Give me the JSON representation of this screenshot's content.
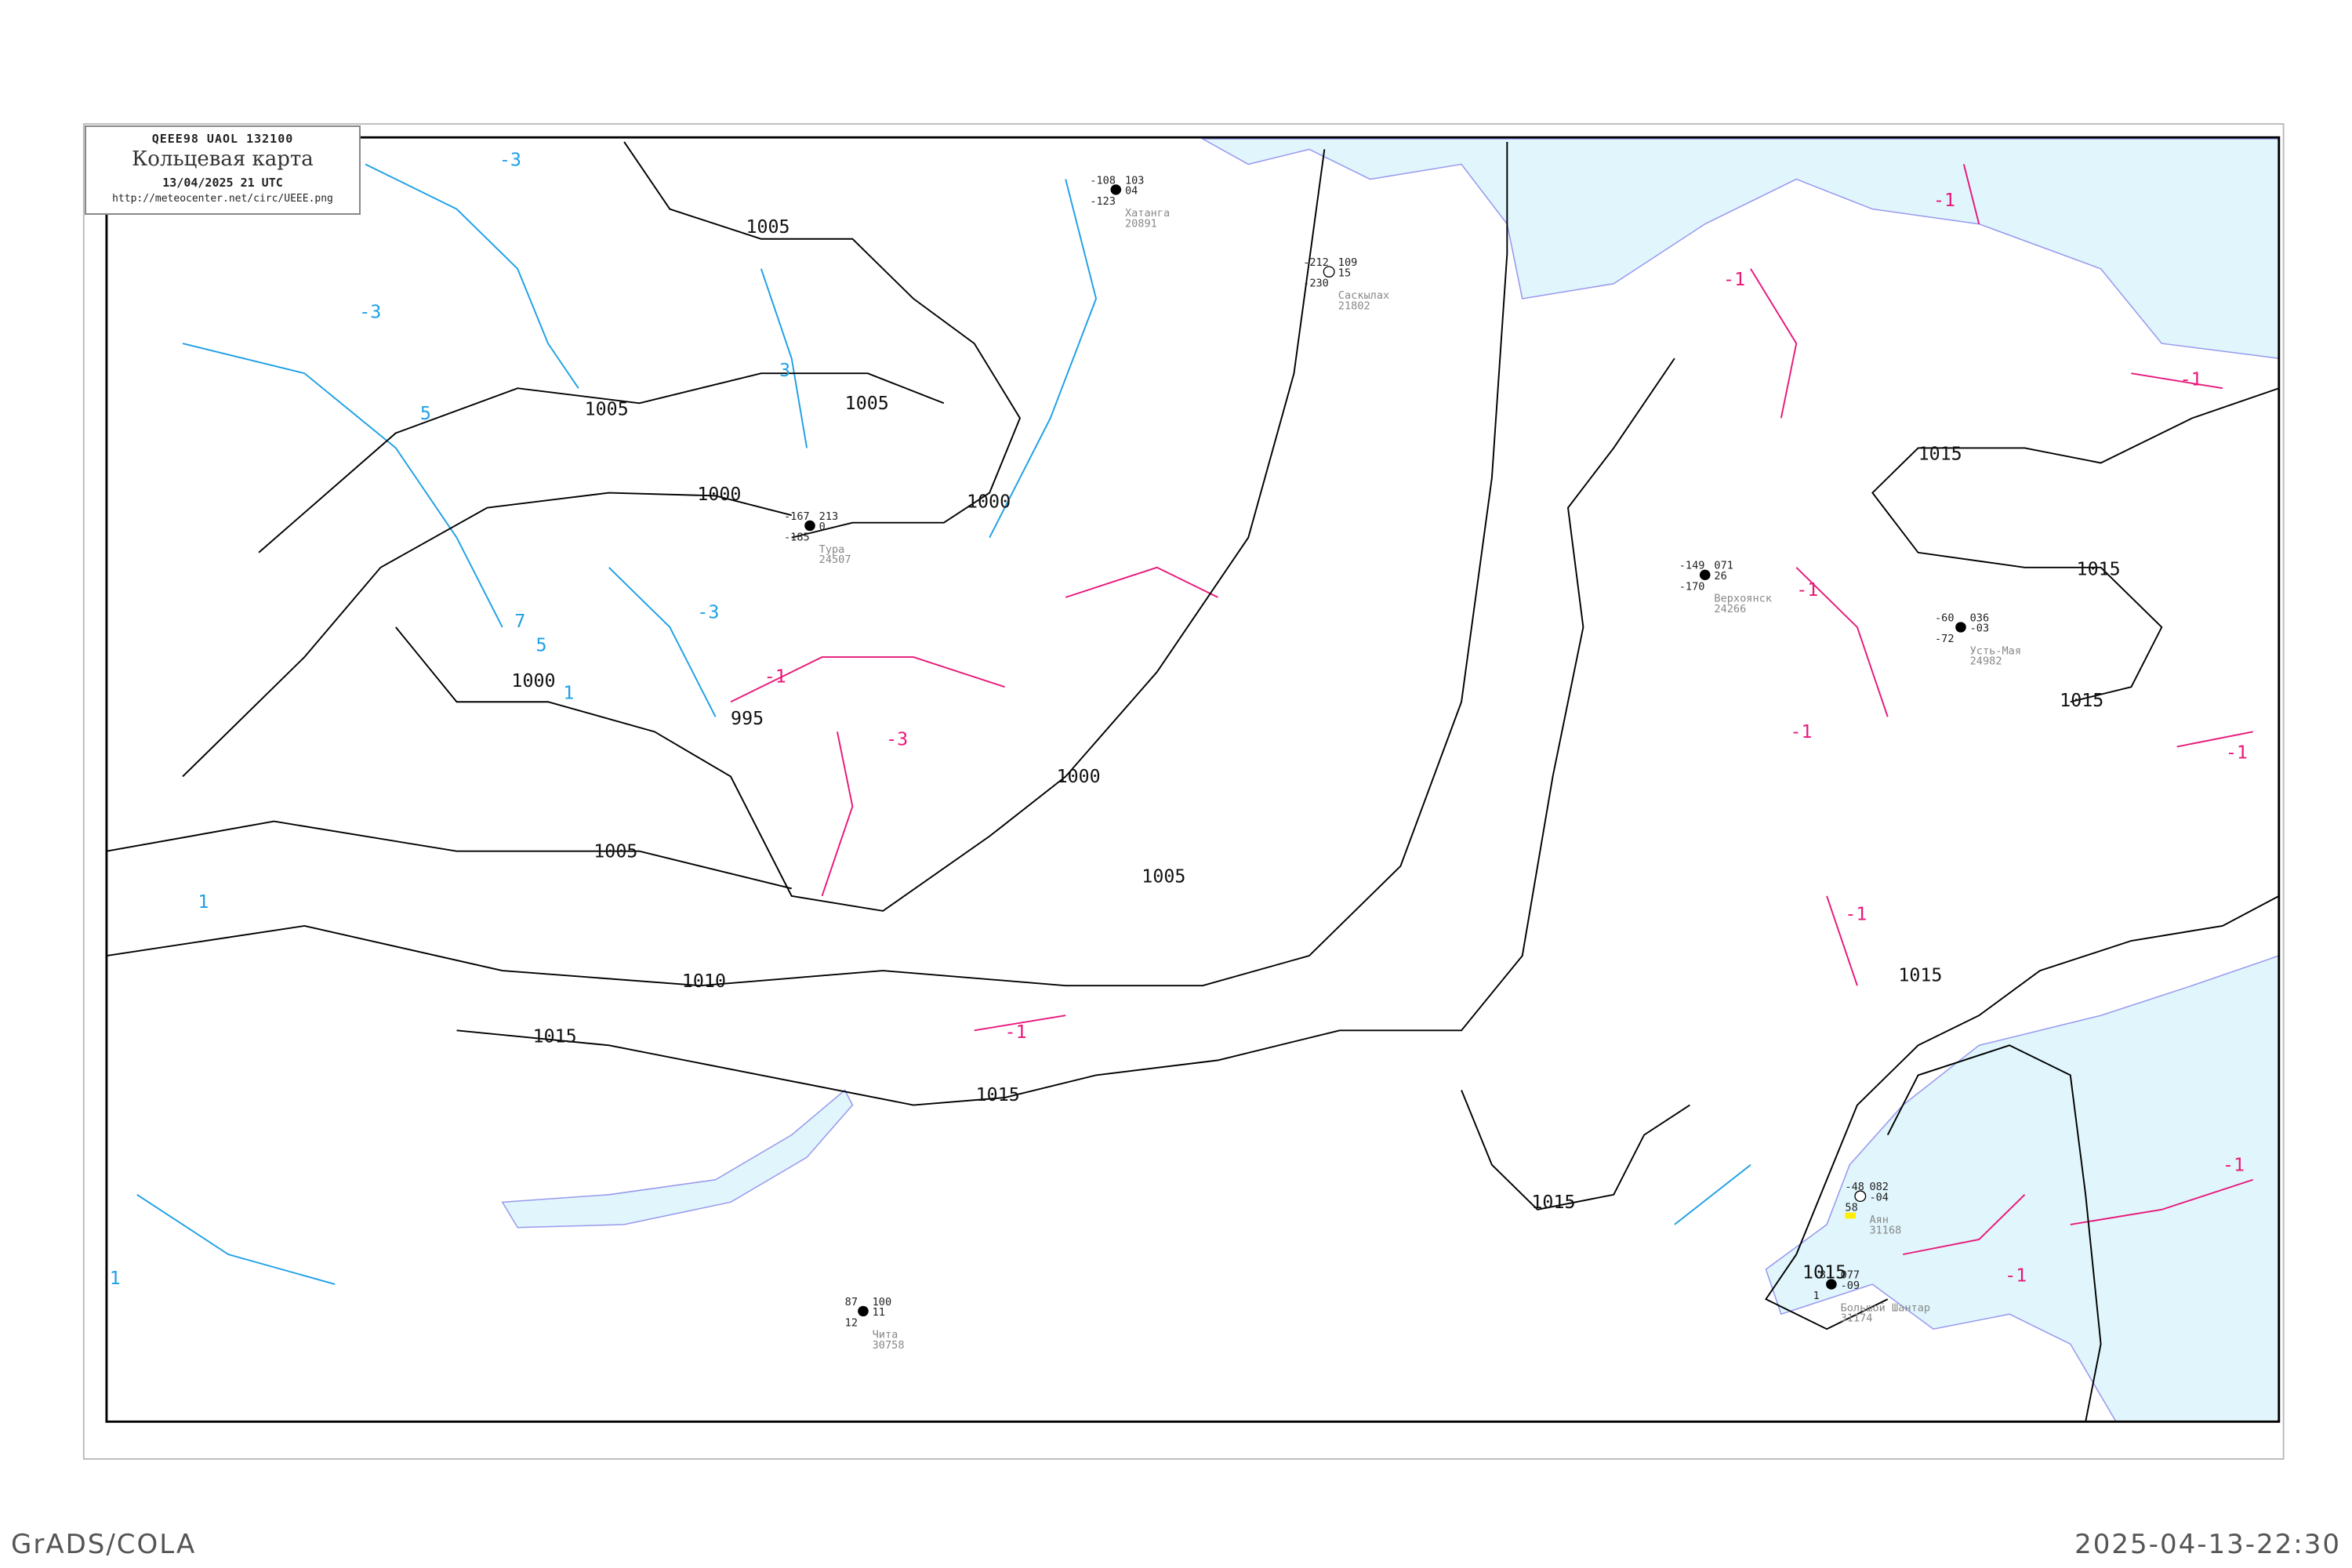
{
  "header": {
    "code_line": "QEEE98  UAOL  132100",
    "title": "Кольцевая карта",
    "datetime": "13/04/2025 21 UTC",
    "url": "http://meteocenter.net/circ/UEEE.png"
  },
  "footer": {
    "software": "GrADS/COLA",
    "timestamp": "2025-04-13-22:30"
  },
  "colors": {
    "isobar": "#000000",
    "isotherm_negative": "#e8187a",
    "isotherm_positive": "#1ea0e6",
    "sea": "#e0f6fc",
    "coast": "#9999ee"
  },
  "isobar_labels": [
    "1005",
    "1005",
    "1005",
    "1000",
    "1000",
    "1000",
    "1000",
    "995",
    "1005",
    "1005",
    "1010",
    "1015",
    "1015",
    "1015",
    "1015",
    "1015",
    "1015",
    "1015",
    "1015"
  ],
  "isotherm_labels_positive": [
    "-3",
    "-3",
    "3",
    "5",
    "7",
    "5",
    "-3",
    "1",
    "1",
    "1"
  ],
  "isotherm_labels_negative": [
    "-1",
    "-3",
    "-1",
    "-1",
    "-1",
    "-1",
    "-1",
    "-1",
    "-1",
    "-1",
    "-1",
    "-1"
  ],
  "stations": [
    {
      "name": "Хатанга",
      "id": "20891",
      "t": "-108",
      "p": "103",
      "dp": "-123",
      "tend": "04"
    },
    {
      "name": "Саскылах",
      "id": "21802",
      "t": "-212",
      "p": "109",
      "dp": "-230",
      "tend": "15"
    },
    {
      "name": "Тура",
      "id": "24507",
      "t": "-167",
      "p": "213",
      "dp": "-185",
      "tend": "0"
    },
    {
      "name": "Верхоянск",
      "id": "24266",
      "t": "-149",
      "p": "071",
      "dp": "-170",
      "tend": "26"
    },
    {
      "name": "Усть-Мая",
      "id": "24982",
      "t": "-60",
      "p": "036",
      "dp": "-72",
      "tend": "-03"
    },
    {
      "name": "Аян",
      "id": "31168",
      "t": "-48",
      "p": "082",
      "dp": "58",
      "tend": "-04"
    },
    {
      "name": "Большой Шантар",
      "id": "31174",
      "t": "-8",
      "p": "077",
      "dp": "1",
      "tend": "-09"
    },
    {
      "name": "Чита",
      "id": "30758",
      "t": "87",
      "p": "100",
      "dp": "12",
      "tend": "11"
    }
  ]
}
